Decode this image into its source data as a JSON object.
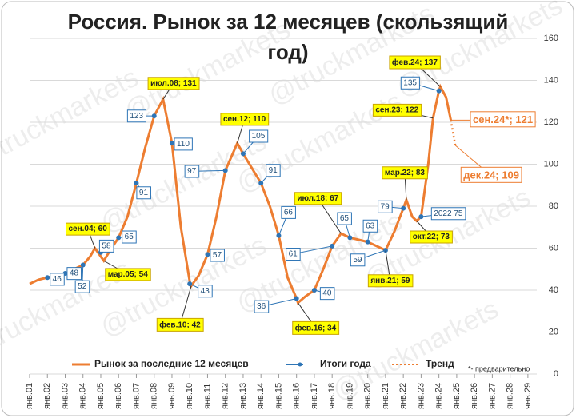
{
  "chart_data": {
    "type": "line",
    "title": "Россия. Рынок за 12 месяцев (скользящий год)",
    "watermark": "@truckmarkets",
    "note": "*- предварительно",
    "xlim": [
      2001,
      2029.5
    ],
    "xticks": [
      {
        "value": 2001,
        "label": "янв.01"
      },
      {
        "value": 2002,
        "label": "янв.02"
      },
      {
        "value": 2003,
        "label": "янв.03"
      },
      {
        "value": 2004,
        "label": "янв.04"
      },
      {
        "value": 2005,
        "label": "янв.05"
      },
      {
        "value": 2006,
        "label": "янв.06"
      },
      {
        "value": 2007,
        "label": "янв.07"
      },
      {
        "value": 2008,
        "label": "янв.08"
      },
      {
        "value": 2009,
        "label": "янв.09"
      },
      {
        "value": 2010,
        "label": "янв.10"
      },
      {
        "value": 2011,
        "label": "янв.11"
      },
      {
        "value": 2012,
        "label": "янв.12"
      },
      {
        "value": 2013,
        "label": "янв.13"
      },
      {
        "value": 2014,
        "label": "янв.14"
      },
      {
        "value": 2015,
        "label": "янв.15"
      },
      {
        "value": 2016,
        "label": "янв.16"
      },
      {
        "value": 2017,
        "label": "янв.17"
      },
      {
        "value": 2018,
        "label": "янв.18"
      },
      {
        "value": 2019,
        "label": "янв.19"
      },
      {
        "value": 2020,
        "label": "янв.20"
      },
      {
        "value": 2021,
        "label": "янв.21"
      },
      {
        "value": 2022,
        "label": "янв.22"
      },
      {
        "value": 2023,
        "label": "янв.23"
      },
      {
        "value": 2024,
        "label": "янв.24"
      },
      {
        "value": 2025,
        "label": "янв.25"
      },
      {
        "value": 2026,
        "label": "янв.26"
      },
      {
        "value": 2027,
        "label": "янв.27"
      },
      {
        "value": 2028,
        "label": "янв.28"
      },
      {
        "value": 2029,
        "label": "янв.29"
      }
    ],
    "ylim": [
      0,
      160
    ],
    "yticks": [
      0,
      20,
      40,
      60,
      80,
      100,
      120,
      140,
      160
    ],
    "grid": true,
    "series": [
      {
        "name": "Рынок за последние 12 месяцев",
        "color": "#ed7d31",
        "style": "line",
        "x": [
          2001.0,
          2001.5,
          2002.0,
          2002.5,
          2003.0,
          2003.5,
          2004.0,
          2004.4,
          2004.67,
          2005.17,
          2005.6,
          2006.0,
          2006.5,
          2007.0,
          2007.5,
          2008.0,
          2008.5,
          2009.0,
          2009.5,
          2010.0,
          2010.08,
          2010.5,
          2011.0,
          2011.5,
          2012.0,
          2012.67,
          2013.0,
          2013.5,
          2014.0,
          2014.5,
          2015.0,
          2015.5,
          2016.0,
          2016.08,
          2016.5,
          2017.0,
          2017.5,
          2018.0,
          2018.5,
          2019.0,
          2019.5,
          2020.0,
          2020.5,
          2021.0,
          2021.5,
          2022.0,
          2022.17,
          2022.5,
          2022.75,
          2023.0,
          2023.4,
          2023.67,
          2024.0,
          2024.08,
          2024.4,
          2024.67
        ],
        "values": [
          43,
          45,
          46,
          47,
          48,
          50,
          52,
          56,
          60,
          54,
          60,
          65,
          75,
          91,
          108,
          123,
          131,
          110,
          70,
          44,
          42,
          47,
          57,
          75,
          97,
          110,
          105,
          98,
          91,
          80,
          66,
          46,
          36,
          34,
          37,
          40,
          50,
          61,
          67,
          65,
          64,
          63,
          61,
          59,
          68,
          79,
          83,
          75,
          73,
          75,
          100,
          122,
          135,
          137,
          132,
          121
        ],
        "value_labels": [
          null,
          null,
          null,
          null,
          null,
          null,
          null,
          null,
          "сен.04; 60",
          "мар.05; 54",
          null,
          null,
          null,
          null,
          null,
          null,
          "июл.08; 131",
          null,
          null,
          null,
          "фев.10; 42",
          null,
          null,
          null,
          null,
          "сен.12; 110",
          null,
          null,
          null,
          null,
          null,
          null,
          null,
          "фев.16; 34",
          null,
          null,
          null,
          null,
          "июл.18; 67",
          null,
          null,
          null,
          null,
          "янв.21; 59",
          null,
          null,
          "мар.22; 83",
          null,
          "окт.22; 73",
          null,
          null,
          "сен.23; 122",
          null,
          "фев.24; 137",
          null,
          null
        ]
      },
      {
        "name": "Итоги года",
        "color": "#2e75b6",
        "style": "points",
        "x": [
          2002,
          2003,
          2004,
          2005,
          2006,
          2007,
          2008,
          2009,
          2010,
          2011,
          2012,
          2013,
          2014,
          2015,
          2016,
          2017,
          2018,
          2019,
          2020,
          2021,
          2022,
          2023,
          2024
        ],
        "values": [
          46,
          48,
          52,
          58,
          65,
          91,
          123,
          110,
          43,
          57,
          97,
          105,
          91,
          66,
          36,
          40,
          61,
          65,
          63,
          59,
          79,
          75,
          135
        ],
        "value_labels": [
          null,
          null,
          null,
          null,
          null,
          null,
          null,
          null,
          null,
          null,
          null,
          null,
          null,
          null,
          null,
          null,
          null,
          null,
          null,
          null,
          null,
          "2022 75",
          null
        ]
      },
      {
        "name": "Тренд",
        "color": "#ed7d31",
        "style": "dotted",
        "x": [
          2024.67,
          2024.92
        ],
        "values": [
          121,
          109
        ],
        "value_labels": [
          "сен.24*; 121",
          "дек.24; 109"
        ]
      }
    ]
  }
}
